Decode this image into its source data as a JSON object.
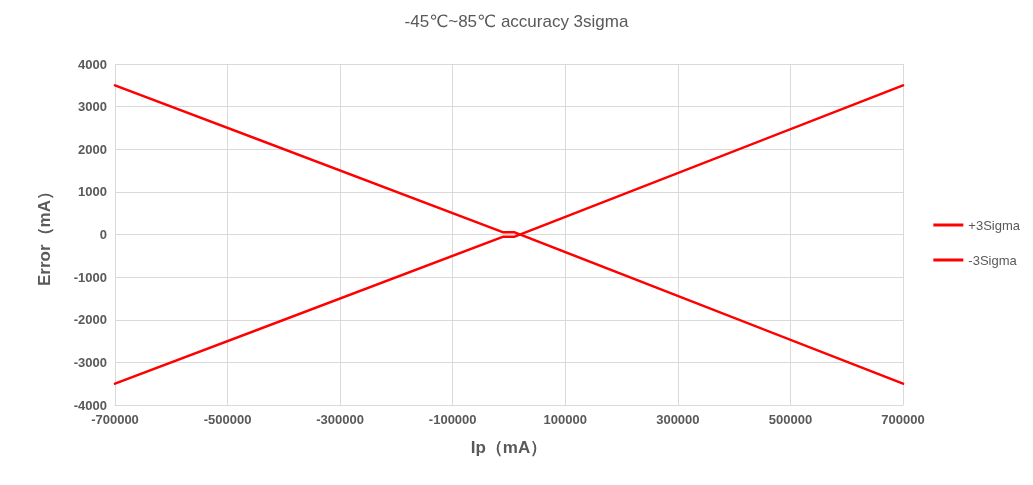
{
  "chart_data": {
    "type": "line",
    "title": "-45℃~85℃ accuracy 3sigma",
    "xlabel": "Ip（mA）",
    "ylabel": "Error（mA）",
    "x": [
      -700000,
      -10000,
      10000,
      700000
    ],
    "series": [
      {
        "name": "+3Sigma",
        "color": "#ff0000",
        "values": [
          -3500,
          -50,
          -50,
          3500
        ]
      },
      {
        "name": "-3Sigma",
        "color": "#ff0000",
        "values": [
          3500,
          50,
          50,
          -3500
        ]
      }
    ],
    "xlim": [
      -700000,
      700000
    ],
    "xticks": [
      -700000,
      -500000,
      -300000,
      -100000,
      100000,
      300000,
      500000,
      700000
    ],
    "ylim": [
      -4000,
      4000
    ],
    "yticks": [
      -4000,
      -3000,
      -2000,
      -1000,
      0,
      1000,
      2000,
      3000,
      4000
    ],
    "grid": true,
    "legend": "right",
    "marker": "none",
    "line_style": "solid"
  }
}
